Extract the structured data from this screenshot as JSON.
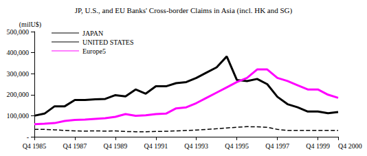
{
  "chart_data": {
    "type": "line",
    "title": "JP, U.S., and EU Banks' Cross-border Claims in Asia (incl. HK and SG)",
    "y_label": "(milU$)",
    "categories": [
      "Q4 1985",
      null,
      null,
      null,
      "Q4 1987",
      null,
      null,
      null,
      "Q4 1989",
      null,
      null,
      null,
      "Q4 1991",
      null,
      null,
      null,
      "Q4 1993",
      null,
      null,
      null,
      "Q4 1995",
      null,
      null,
      null,
      "Q4 1997",
      null,
      null,
      null,
      "Q4 1999",
      null,
      "Q4 2000"
    ],
    "series": [
      {
        "name": "JAPAN",
        "color": "#000000",
        "line_style": "solid",
        "marker": "none",
        "values": [
          100000,
          110000,
          145000,
          145000,
          175000,
          175000,
          178000,
          180000,
          198000,
          192000,
          225000,
          205000,
          240000,
          240000,
          255000,
          260000,
          280000,
          305000,
          330000,
          382000,
          270000,
          265000,
          275000,
          250000,
          190000,
          155000,
          140000,
          120000,
          120000,
          112000,
          118000
        ]
      },
      {
        "name": "UNITED STATES",
        "color": "#000000",
        "line_style": "dashed",
        "marker": "none",
        "values": [
          35000,
          35000,
          33000,
          30000,
          28000,
          27000,
          28000,
          27000,
          28000,
          25000,
          24000,
          24000,
          25000,
          26000,
          28000,
          30000,
          32000,
          35000,
          38000,
          42000,
          45000,
          48000,
          47000,
          45000,
          35000,
          30000,
          30000,
          30000,
          30000,
          30000,
          30000
        ]
      },
      {
        "name": "Europe5",
        "color": "#ff00ff",
        "line_style": "solid",
        "marker": "none",
        "values": [
          60000,
          62000,
          65000,
          75000,
          80000,
          82000,
          85000,
          88000,
          95000,
          108000,
          100000,
          102000,
          108000,
          110000,
          135000,
          140000,
          160000,
          185000,
          210000,
          235000,
          260000,
          280000,
          320000,
          320000,
          280000,
          265000,
          245000,
          225000,
          225000,
          200000,
          185000
        ]
      }
    ],
    "ylim": [
      0,
      500000
    ],
    "yticks": [
      {
        "value": 0,
        "label": "-"
      },
      {
        "value": 100000,
        "label": "100,000"
      },
      {
        "value": 200000,
        "label": "200,000"
      },
      {
        "value": 300000,
        "label": "300,000"
      },
      {
        "value": 400000,
        "label": "400,000"
      },
      {
        "value": 500000,
        "label": "500,000"
      }
    ],
    "grid": false,
    "legend": "top-left"
  }
}
